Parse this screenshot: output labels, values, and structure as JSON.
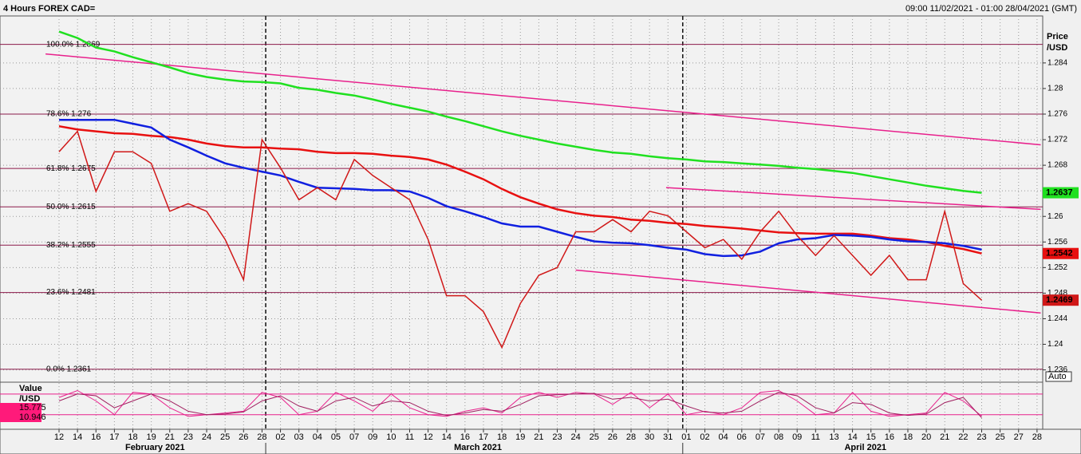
{
  "chart_data": {
    "type": "line",
    "title": "4 Hours FOREX CAD=",
    "subtitle": "09:00 11/02/2021 - 01:00 28/04/2021 (GMT)",
    "y_label_lines": [
      "Price",
      "/USD"
    ],
    "auto_label": "Auto",
    "categories": [
      "12",
      "14",
      "16",
      "17",
      "18",
      "19",
      "21",
      "23",
      "24",
      "25",
      "26",
      "28",
      "02",
      "03",
      "04",
      "05",
      "07",
      "09",
      "10",
      "11",
      "12",
      "14",
      "16",
      "17",
      "18",
      "19",
      "21",
      "23",
      "24",
      "25",
      "26",
      "28",
      "30",
      "31",
      "01",
      "02",
      "04",
      "06",
      "07",
      "08",
      "09",
      "11",
      "13",
      "14",
      "15",
      "16",
      "18",
      "20",
      "21",
      "22",
      "23",
      "25",
      "27",
      "28"
    ],
    "months": [
      {
        "label": "February 2021",
        "x": 5.2
      },
      {
        "label": "March 2021",
        "x": 22.7
      },
      {
        "label": "April 2021",
        "x": 43.7
      }
    ],
    "ylim": [
      1.2342,
      1.2891
    ],
    "yticks": [
      1.236,
      1.24,
      1.244,
      1.248,
      1.252,
      1.256,
      1.26,
      1.264,
      1.268,
      1.272,
      1.276,
      1.28,
      1.284
    ],
    "grid": true,
    "fib_levels": [
      {
        "value": 1.2869,
        "label": "100.0% 1.2869"
      },
      {
        "value": 1.276,
        "label": "78.6% 1.276"
      },
      {
        "value": 1.2675,
        "label": "61.8% 1.2675"
      },
      {
        "value": 1.2615,
        "label": "50.0% 1.2615"
      },
      {
        "value": 1.2555,
        "label": "38.2% 1.2555"
      },
      {
        "value": 1.2481,
        "label": "23.6% 1.2481"
      },
      {
        "value": 1.2361,
        "label": "0.0% 1.2361"
      }
    ],
    "fib_color": "#8b1a4a",
    "trend_color": "#e8208c",
    "trend_lines": [
      {
        "x": [
          -0.73,
          53.2
        ],
        "y": [
          1.2854,
          1.2712
        ]
      },
      {
        "x": [
          32.9,
          53.2
        ],
        "y": [
          1.2645,
          1.2611
        ]
      },
      {
        "x": [
          28.0,
          53.2
        ],
        "y": [
          1.2516,
          1.2449
        ]
      }
    ],
    "series": [
      {
        "color": "#20e020",
        "values": [
          1.2889,
          1.2879,
          1.2864,
          1.2858,
          1.2849,
          1.2841,
          1.2833,
          1.2824,
          1.2818,
          1.2814,
          1.2811,
          1.281,
          1.2808,
          1.2801,
          1.2798,
          1.2793,
          1.2789,
          1.2783,
          1.2776,
          1.277,
          1.2764,
          1.2756,
          1.2749,
          1.2741,
          1.2733,
          1.2726,
          1.272,
          1.2714,
          1.2709,
          1.2704,
          1.27,
          1.2698,
          1.2694,
          1.2691,
          1.2689,
          1.2686,
          1.2685,
          1.2683,
          1.2681,
          1.2679,
          1.2676,
          1.2674,
          1.2671,
          1.2668,
          1.2663,
          1.2658,
          1.2653,
          1.2648,
          1.2644,
          1.264,
          1.2637,
          null,
          null,
          null
        ],
        "tag": true
      },
      {
        "color": "#e81010",
        "values": [
          1.2741,
          1.2736,
          1.2733,
          1.273,
          1.2729,
          1.2726,
          1.2724,
          1.272,
          1.2714,
          1.271,
          1.2708,
          1.2708,
          1.2706,
          1.2705,
          1.2701,
          1.2699,
          1.2699,
          1.2698,
          1.2695,
          1.2693,
          1.2689,
          1.2681,
          1.267,
          1.2658,
          1.2643,
          1.263,
          1.262,
          1.2611,
          1.2605,
          1.2601,
          1.2599,
          1.2595,
          1.2593,
          1.259,
          1.2588,
          1.2585,
          1.2583,
          1.2581,
          1.2578,
          1.2575,
          1.2574,
          1.2573,
          1.2573,
          1.2573,
          1.257,
          1.2566,
          1.2564,
          1.256,
          1.2554,
          1.2549,
          1.2542,
          null,
          null,
          null
        ],
        "tag": true
      },
      {
        "color": "#1020e0",
        "values": [
          1.2751,
          1.2751,
          1.2751,
          1.2751,
          1.2745,
          1.2739,
          1.272,
          1.2708,
          1.2695,
          1.2683,
          1.2676,
          1.267,
          1.2664,
          1.2654,
          1.2645,
          1.2644,
          1.2643,
          1.2641,
          1.2641,
          1.2639,
          1.2629,
          1.2616,
          1.2608,
          1.2599,
          1.2589,
          1.2584,
          1.2584,
          1.2576,
          1.2568,
          1.2561,
          1.2559,
          1.2558,
          1.2555,
          1.2551,
          1.2548,
          1.2541,
          1.2538,
          1.2539,
          1.2545,
          1.2558,
          1.2564,
          1.2566,
          1.2571,
          1.257,
          1.2568,
          1.2564,
          1.2561,
          1.256,
          1.2558,
          1.2554,
          1.2548,
          null,
          null,
          null
        ],
        "tag": false
      },
      {
        "color": "#d01818",
        "values": [
          1.2701,
          1.2733,
          1.2639,
          1.2701,
          1.2701,
          1.2683,
          1.2608,
          1.262,
          1.2608,
          1.2564,
          1.2501,
          1.272,
          1.2676,
          1.2626,
          1.2645,
          1.2626,
          1.2689,
          1.2664,
          1.2645,
          1.2626,
          1.2564,
          1.2476,
          1.2476,
          1.2451,
          1.2395,
          1.2464,
          1.2508,
          1.252,
          1.2576,
          1.2576,
          1.2595,
          1.2576,
          1.2608,
          1.2601,
          1.2576,
          1.2551,
          1.2564,
          1.2533,
          1.2576,
          1.2608,
          1.257,
          1.2539,
          1.257,
          1.2539,
          1.2508,
          1.2539,
          1.2501,
          1.2501,
          1.2608,
          1.2495,
          1.2469,
          null,
          null,
          null
        ],
        "tag": true
      }
    ],
    "oscillator": {
      "label_lines": [
        "Value",
        "/USD"
      ],
      "ylim": [
        -20,
        112
      ],
      "levels": [
        80,
        20
      ],
      "series": [
        {
          "color": "#e8208c",
          "values": [
            70,
            90,
            60,
            20,
            85,
            80,
            40,
            15,
            20,
            25,
            30,
            85,
            70,
            20,
            30,
            85,
            60,
            30,
            80,
            40,
            20,
            15,
            30,
            40,
            25,
            70,
            85,
            70,
            85,
            80,
            50,
            85,
            40,
            80,
            20,
            30,
            20,
            40,
            85,
            90,
            60,
            20,
            25,
            85,
            30,
            15,
            20,
            25,
            85,
            60,
            15.775,
            null,
            null,
            null
          ]
        },
        {
          "color": "#a02060",
          "values": [
            60,
            80,
            75,
            40,
            60,
            80,
            60,
            30,
            20,
            22,
            28,
            60,
            75,
            45,
            30,
            60,
            70,
            45,
            60,
            55,
            30,
            18,
            25,
            35,
            30,
            50,
            75,
            78,
            80,
            82,
            65,
            70,
            60,
            65,
            45,
            28,
            25,
            30,
            60,
            85,
            75,
            40,
            25,
            55,
            50,
            25,
            18,
            22,
            55,
            70,
            10.946,
            null,
            null,
            null
          ]
        }
      ]
    }
  }
}
